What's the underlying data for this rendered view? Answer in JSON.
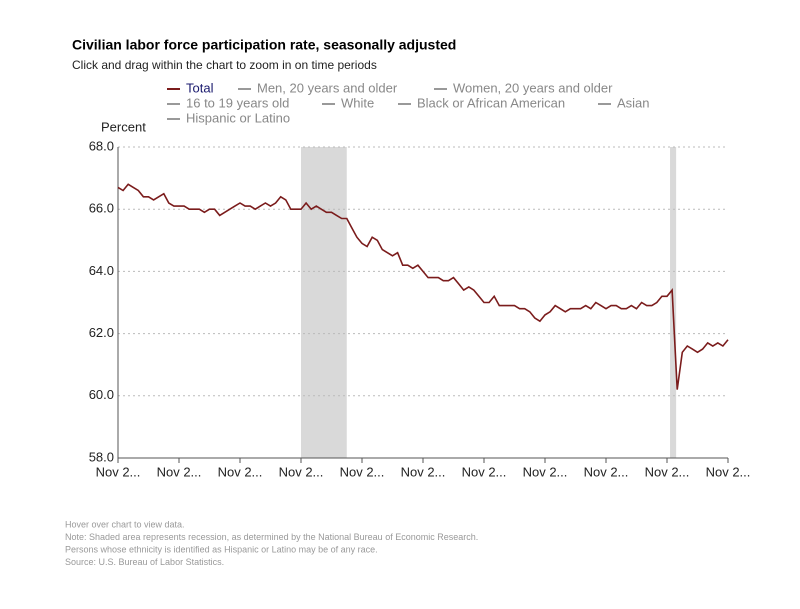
{
  "chart_data": {
    "type": "line",
    "title": "Civilian labor force participation rate, seasonally adjusted",
    "subtitle": "Click and drag within the chart to zoom in on time periods",
    "y_label": "Percent",
    "categories": [
      "Nov 2...",
      null,
      null,
      null,
      null,
      null,
      null,
      null,
      null,
      null,
      null,
      null,
      "Nov 2...",
      null,
      null,
      null,
      null,
      null,
      null,
      null,
      null,
      null,
      null,
      null,
      "Nov 2...",
      null,
      null,
      null,
      null,
      null,
      null,
      null,
      null,
      null,
      null,
      null,
      "Nov 2...",
      null,
      null,
      null,
      null,
      null,
      null,
      null,
      null,
      null,
      null,
      null,
      "Nov 2...",
      null,
      null,
      null,
      null,
      null,
      null,
      null,
      null,
      null,
      null,
      null,
      "Nov 2...",
      null,
      null,
      null,
      null,
      null,
      null,
      null,
      null,
      null,
      null,
      null,
      "Nov 2...",
      null,
      null,
      null,
      null,
      null,
      null,
      null,
      null,
      null,
      null,
      null,
      "Nov 2...",
      null,
      null,
      null,
      null,
      null,
      null,
      null,
      null,
      null,
      null,
      null,
      "Nov 2...",
      null,
      null,
      null,
      null,
      null,
      null,
      null,
      null,
      null,
      null,
      null,
      "Nov 2...",
      null,
      null,
      null,
      null,
      null,
      null,
      null,
      null,
      null,
      null,
      null,
      "Nov 2..."
    ],
    "series": [
      {
        "name": "Total",
        "color": "#7b1c1c",
        "values": [
          66.7,
          66.6,
          66.8,
          66.7,
          66.6,
          66.4,
          66.4,
          66.3,
          66.4,
          66.5,
          66.2,
          66.1,
          66.1,
          66.1,
          66.0,
          66.0,
          66.0,
          65.9,
          66.0,
          66.0,
          65.8,
          65.9,
          66.0,
          66.1,
          66.2,
          66.1,
          66.1,
          66.0,
          66.1,
          66.2,
          66.1,
          66.2,
          66.4,
          66.3,
          66.0,
          66.0,
          66.0,
          66.2,
          66.0,
          66.1,
          66.0,
          65.9,
          65.9,
          65.8,
          65.7,
          65.7,
          65.4,
          65.1,
          64.9,
          64.8,
          65.1,
          65.0,
          64.7,
          64.6,
          64.5,
          64.6,
          64.2,
          64.2,
          64.1,
          64.2,
          64.0,
          63.8,
          63.8,
          63.8,
          63.7,
          63.7,
          63.8,
          63.6,
          63.4,
          63.5,
          63.4,
          63.2,
          63.0,
          63.0,
          63.2,
          62.9,
          62.9,
          62.9,
          62.9,
          62.8,
          62.8,
          62.7,
          62.5,
          62.4,
          62.6,
          62.7,
          62.9,
          62.8,
          62.7,
          62.8,
          62.8,
          62.8,
          62.9,
          62.8,
          63.0,
          62.9,
          62.8,
          62.9,
          62.9,
          62.8,
          62.8,
          62.9,
          62.8,
          63.0,
          62.9,
          62.9,
          63.0,
          63.2,
          63.2,
          63.4,
          60.2,
          61.4,
          61.6,
          61.5,
          61.4,
          61.5,
          61.7,
          61.6,
          61.7,
          61.6,
          61.8
        ]
      }
    ],
    "legend_inactive": [
      "Men, 20 years and older",
      "Women, 20 years and older",
      "16 to 19 years old",
      "White",
      "Black or African American",
      "Asian",
      "Hispanic or Latino"
    ],
    "recessions": [
      [
        36,
        45
      ],
      [
        108.6,
        109.8
      ]
    ],
    "ylim": [
      58,
      68
    ],
    "yticks": [
      {
        "value": 58,
        "label": "58.0"
      },
      {
        "value": 60,
        "label": "60.0"
      },
      {
        "value": 62,
        "label": "62.0"
      },
      {
        "value": 64,
        "label": "64.0"
      },
      {
        "value": 66,
        "label": "66.0"
      },
      {
        "value": 68,
        "label": "68.0"
      }
    ],
    "grid": true,
    "notes": [
      "Hover over chart to view data.",
      "Note: Shaded area represents recession, as determined by the National Bureau of Economic Research.",
      "Persons whose ethnicity is identified as Hispanic or Latino may be of any race.",
      "Source: U.S. Bureau of Labor Statistics."
    ]
  }
}
